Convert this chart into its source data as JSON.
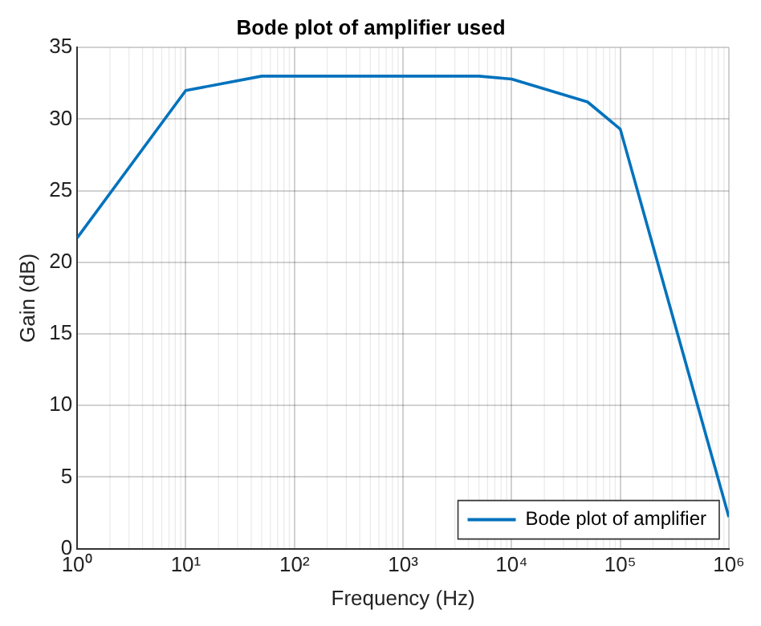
{
  "chart_data": {
    "type": "line",
    "title": "Bode plot of amplifier used",
    "xlabel": "Frequency (Hz)",
    "ylabel": "Gain (dB)",
    "log": "x",
    "grid": true,
    "legend": "bottom right",
    "marker": "none",
    "line_style": "solid",
    "xlim": [
      1,
      1000000
    ],
    "xticks": [
      {
        "value": 1,
        "label": "10⁰"
      },
      {
        "value": 10,
        "label": "10¹"
      },
      {
        "value": 100,
        "label": "10²"
      },
      {
        "value": 1000,
        "label": "10³"
      },
      {
        "value": 10000,
        "label": "10⁴"
      },
      {
        "value": 100000,
        "label": "10⁵"
      },
      {
        "value": 1000000,
        "label": "10⁶"
      }
    ],
    "ylim": [
      0,
      35
    ],
    "yticks": [
      0,
      5,
      10,
      15,
      20,
      25,
      30,
      35
    ],
    "series": [
      {
        "name": "Bode plot of amplifier",
        "color": "#0072bd",
        "x": [
          1,
          10,
          50,
          100,
          1000,
          5000,
          10000,
          50000,
          100000,
          1000000
        ],
        "values": [
          21.7,
          32,
          33,
          33,
          33,
          33,
          32.8,
          31.2,
          29.3,
          2.2
        ]
      }
    ]
  }
}
